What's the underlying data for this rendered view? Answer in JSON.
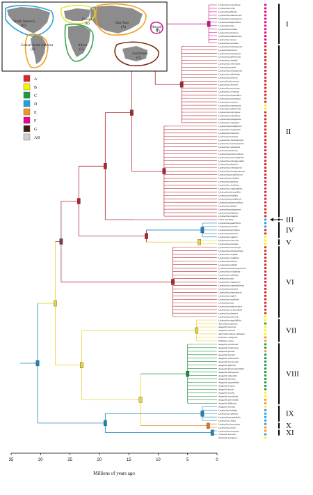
{
  "map": {
    "regions": [
      {
        "name": "North America",
        "code": "(D)",
        "color": "#2aa7d8"
      },
      {
        "name": "Europe",
        "code": "(B)",
        "color": "#e7e43b"
      },
      {
        "name": "East Asia",
        "code": "(A)",
        "color": "#f0a21e"
      },
      {
        "name": "Hawaii",
        "code": "(F)",
        "color": "#cc2b91"
      },
      {
        "name": "Central-South America",
        "code": "(E)",
        "color": "#f0a21e"
      },
      {
        "name": "Africa",
        "code": "(C)",
        "color": "#2ea84b"
      },
      {
        "name": "Australasia",
        "code": "(G)",
        "color": "#7a2e12"
      }
    ]
  },
  "legend": [
    {
      "code": "A",
      "color": "#d7262d"
    },
    {
      "code": "B",
      "color": "#fff200"
    },
    {
      "code": "C",
      "color": "#1c9c3e"
    },
    {
      "code": "D",
      "color": "#1aa3de"
    },
    {
      "code": "E",
      "color": "#f7941d"
    },
    {
      "code": "F",
      "color": "#ec008c"
    },
    {
      "code": "G",
      "color": "#3b1e0f"
    },
    {
      "code": "AB",
      "color": "#d0d0d0"
    }
  ],
  "clades": [
    "I",
    "II",
    "III",
    "IV",
    "V",
    "VI",
    "VII",
    "VIII",
    "IX",
    "X",
    "XI"
  ],
  "axis": {
    "title": "Millions of years ago",
    "ticks": [
      "35",
      "30",
      "25",
      "20",
      "15",
      "10",
      "5",
      "0"
    ]
  },
  "taxa": [
    {
      "name": "Lysimachia mauritiana",
      "area": "F"
    },
    {
      "name": "Lysimachia remyi",
      "area": "F"
    },
    {
      "name": "Lysimachia filifolia",
      "area": "F"
    },
    {
      "name": "Lysimachia kalalauensis",
      "area": "F"
    },
    {
      "name": "Lysimachia waimeaensis",
      "area": "F"
    },
    {
      "name": "Lysimachia daphnoides",
      "area": "F"
    },
    {
      "name": "Lysimachia iniki",
      "area": "F"
    },
    {
      "name": "Lysimachia ovoidea",
      "area": "F"
    },
    {
      "name": "Lysimachia glutinosa",
      "area": "F"
    },
    {
      "name": "Lysimachia kalalauensis",
      "area": "F"
    },
    {
      "name": "Lysimachia venosa",
      "area": "F"
    },
    {
      "name": "Lysimachia venenata",
      "area": "F"
    },
    {
      "name": "Lysimachia lichiangensis",
      "area": "A"
    },
    {
      "name": "Lysimachia forbesii",
      "area": "A"
    },
    {
      "name": "Lysimachia barystachys",
      "area": "A"
    },
    {
      "name": "Lysimachia ephemerum",
      "area": "A"
    },
    {
      "name": "Lysimachia candida",
      "area": "A"
    },
    {
      "name": "Lysimachia clethroides",
      "area": "A"
    },
    {
      "name": "Lysimachia pumila",
      "area": "A"
    },
    {
      "name": "Lysimachia lichiangensis",
      "area": "A"
    },
    {
      "name": "Lysimachia reflexiloba",
      "area": "A"
    },
    {
      "name": "Lysimachia taliensis",
      "area": "A"
    },
    {
      "name": "Lysimachia decurrens",
      "area": "A"
    },
    {
      "name": "Lysimachia silvestrii",
      "area": "A"
    },
    {
      "name": "Lysimachia auriculata",
      "area": "A"
    },
    {
      "name": "Lysimachia christinae",
      "area": "A"
    },
    {
      "name": "Lysimachia glandulifera",
      "area": "A"
    },
    {
      "name": "Lysimachia taiwaniana",
      "area": "A"
    },
    {
      "name": "Lysimachia monnieri",
      "area": "A"
    },
    {
      "name": "Lysimachia nummularia",
      "area": "B"
    },
    {
      "name": "Lysimachia ephemerum",
      "area": "B"
    },
    {
      "name": "Lysimachia heterogena",
      "area": "A"
    },
    {
      "name": "Lysimachia mauritiana",
      "area": "A"
    },
    {
      "name": "Lysimachia pentapetala",
      "area": "A"
    },
    {
      "name": "Lysimachia crispidens",
      "area": "A"
    },
    {
      "name": "Lysimachia paridiformis",
      "area": "A"
    },
    {
      "name": "Lysimachia erosipetala",
      "area": "A"
    },
    {
      "name": "Lysimachia omeiensis",
      "area": "A"
    },
    {
      "name": "Lysimachia hemsleyi",
      "area": "A"
    },
    {
      "name": "Lysimachia clementsiensis",
      "area": "A"
    },
    {
      "name": "Lysimachia nanchuanensis",
      "area": "A"
    },
    {
      "name": "Lysimachia rubiginosa",
      "area": "A"
    },
    {
      "name": "Lysimachia fistulosa",
      "area": "A"
    },
    {
      "name": "Lysimachia phyllocephala",
      "area": "A"
    },
    {
      "name": "Lysimachia paucinollifolia",
      "area": "A"
    },
    {
      "name": "Lysimachia melampyroides",
      "area": "A"
    },
    {
      "name": "Lysimachia alpestris",
      "area": "A"
    },
    {
      "name": "Lysimachia chikungensis",
      "area": "A"
    },
    {
      "name": "Lysimachia kwangtungensis",
      "area": "A"
    },
    {
      "name": "Lysimachia pseudohenryi",
      "area": "A"
    },
    {
      "name": "Lysimachia perfoliata",
      "area": "A"
    },
    {
      "name": "Lysimachia japonica",
      "area": "A"
    },
    {
      "name": "Lysimachia christinae",
      "area": "A"
    },
    {
      "name": "Lysimachia congestiflora",
      "area": "A"
    },
    {
      "name": "Lysimachia drymariflia",
      "area": "A"
    },
    {
      "name": "Lysimachia fordiana",
      "area": "A"
    },
    {
      "name": "Lysimachia paridiformis",
      "area": "A"
    },
    {
      "name": "Lysimachia dextrorsiflora",
      "area": "A"
    },
    {
      "name": "Lysimachia alfredii",
      "area": "A"
    },
    {
      "name": "Lysimachia patungensis",
      "area": "A"
    },
    {
      "name": "Lysimachia klattiana",
      "area": "A"
    },
    {
      "name": "Lysimachia longipes",
      "area": "A"
    },
    {
      "name": "Glaux maritima",
      "area": "D"
    },
    {
      "name": "Lysimachia quadriflora",
      "area": "D"
    },
    {
      "name": "Lysimachia terrestris",
      "area": "D"
    },
    {
      "name": "Lysimachia thyrsiflora",
      "area": "A"
    },
    {
      "name": "Lysimachia davurica",
      "area": "A"
    },
    {
      "name": "Lysimachia vulgaris",
      "area": "B"
    },
    {
      "name": "Lysimachia nemorum",
      "area": "B"
    },
    {
      "name": "Lysimachia punctata",
      "area": "B"
    },
    {
      "name": "Lysimachia microcarpa",
      "area": "A"
    },
    {
      "name": "Lysimachia pittosporoides",
      "area": "A"
    },
    {
      "name": "Lysimachia roxifolia",
      "area": "A"
    },
    {
      "name": "Lysimachia cordifolia",
      "area": "A"
    },
    {
      "name": "Lysimachia paterna",
      "area": "A"
    },
    {
      "name": "Lysimachia millietii",
      "area": "A"
    },
    {
      "name": "Lysimachia foenum-graecum",
      "area": "A"
    },
    {
      "name": "Lysimachia trichopoda",
      "area": "A"
    },
    {
      "name": "Lysimachia capillipes",
      "area": "A"
    },
    {
      "name": "Lysimachia laxa",
      "area": "A"
    },
    {
      "name": "Lysimachia chapaensis",
      "area": "A"
    },
    {
      "name": "Lysimachia nummuliformis",
      "area": "A"
    },
    {
      "name": "Lysimachia hemsleyi",
      "area": "A"
    },
    {
      "name": "Lysimachia heterobotrys",
      "area": "A"
    },
    {
      "name": "Lysimachia engleri",
      "area": "A"
    },
    {
      "name": "Lysimachia lancifolia",
      "area": "A"
    },
    {
      "name": "Lysimachia laxa",
      "area": "A"
    },
    {
      "name": "Lysimachia peduncularis",
      "area": "A"
    },
    {
      "name": "Lysimachia verbascifolia",
      "area": "A"
    },
    {
      "name": "Lysimachia alpestris",
      "area": "A"
    },
    {
      "name": "Lysimachia nemorum",
      "area": "B"
    },
    {
      "name": "Lysimachia serpyllifolia",
      "area": "B"
    },
    {
      "name": "Asterolinon adoense",
      "area": "C"
    },
    {
      "name": "Anagallis arvensis",
      "area": "B"
    },
    {
      "name": "Anagallis monelli",
      "area": "B"
    },
    {
      "name": "Asterolinon linum-stellatum",
      "area": "B"
    },
    {
      "name": "Pelletiera wildpretii",
      "area": "E"
    },
    {
      "name": "Pelletiera verna",
      "area": "E"
    },
    {
      "name": "Anagallis acuminata",
      "area": "C"
    },
    {
      "name": "Anagallis rhodesiaca",
      "area": "C"
    },
    {
      "name": "Anagallis pumila",
      "area": "E"
    },
    {
      "name": "Anagallis hoehnii",
      "area": "C"
    },
    {
      "name": "Anagallis rubricaulis",
      "area": "C"
    },
    {
      "name": "Anagallis tenuicaulis",
      "area": "C"
    },
    {
      "name": "Anagallis djalonis",
      "area": "C"
    },
    {
      "name": "Anagallis kinematiantifolia",
      "area": "C"
    },
    {
      "name": "Anagallis dilungensis",
      "area": "C"
    },
    {
      "name": "Anagallis oligantha",
      "area": "C"
    },
    {
      "name": "Anagallis barbata",
      "area": "C"
    },
    {
      "name": "Anagallis angustiloba",
      "area": "C"
    },
    {
      "name": "Anagallis serpens",
      "area": "C"
    },
    {
      "name": "Anagallis tenuis",
      "area": "C"
    },
    {
      "name": "Anagallis tenella",
      "area": "B"
    },
    {
      "name": "Anagallis crassifolia",
      "area": "B"
    },
    {
      "name": "Anagallis alternifolia",
      "area": "E"
    },
    {
      "name": "Anagallis filiformis",
      "area": "E"
    },
    {
      "name": "Anagallis minima",
      "area": "B"
    },
    {
      "name": "Lysimachia hybrida",
      "area": "D"
    },
    {
      "name": "Lysimachia radicans",
      "area": "D"
    },
    {
      "name": "Lysimachia quadrifolia",
      "area": "D"
    },
    {
      "name": "Lysimachia ciliata",
      "area": "D"
    },
    {
      "name": "Lysimachia lanceolata",
      "area": "D"
    },
    {
      "name": "Lysimachia asolia",
      "area": "E"
    },
    {
      "name": "Lysimachia mexicana",
      "area": "E"
    },
    {
      "name": "Trientalis borealis",
      "area": "D"
    },
    {
      "name": "Trientalis europaea",
      "area": "B"
    }
  ]
}
